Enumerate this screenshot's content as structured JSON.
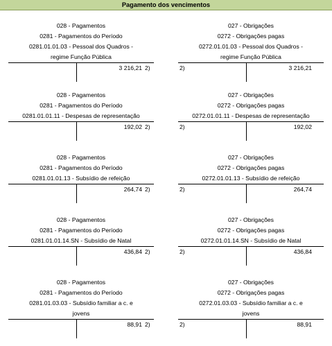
{
  "title": "Pagamento dos vencimentos",
  "blocks": [
    {
      "left": {
        "lines": [
          "028 - Pagamentos",
          "0281 - Pagamentos do Período",
          "0281.01.01.03 - Pessoal dos Quadros -",
          "regime Função Pública"
        ],
        "amount": "3 216,21",
        "ref": "2)"
      },
      "right": {
        "lines": [
          "027 - Obrigações",
          "0272 - Obrigações pagas",
          "0272.01.01.03 - Pessoal dos Quadros -",
          "regime Função Pública"
        ],
        "amount": "3 216,21",
        "ref": "2)"
      }
    },
    {
      "left": {
        "lines": [
          "028 - Pagamentos",
          "0281 - Pagamentos do Período",
          "0281.01.01.11 - Despesas de representação"
        ],
        "amount": "192,02",
        "ref": "2)"
      },
      "right": {
        "lines": [
          "027 - Obrigações",
          "0272 - Obrigações pagas",
          "0272.01.01.11 - Despesas de representação"
        ],
        "amount": "192,02",
        "ref": "2)"
      }
    },
    {
      "left": {
        "lines": [
          "028 - Pagamentos",
          "0281 - Pagamentos do Período",
          "0281.01.01.13 - Subsídio de refeição"
        ],
        "amount": "264,74",
        "ref": "2)"
      },
      "right": {
        "lines": [
          "027 - Obrigações",
          "0272 - Obrigações pagas",
          "0272.01.01.13 - Subsídio de refeição"
        ],
        "amount": "264,74",
        "ref": "2)"
      }
    },
    {
      "left": {
        "lines": [
          "028 - Pagamentos",
          "0281 - Pagamentos do Período",
          "0281.01.01.14.SN - Subsídio de Natal"
        ],
        "amount": "436,84",
        "ref": "2)"
      },
      "right": {
        "lines": [
          "027 - Obrigações",
          "0272 - Obrigações pagas",
          "0272.01.01.14.SN - Subsídio de Natal"
        ],
        "amount": "436,84",
        "ref": "2)"
      }
    },
    {
      "left": {
        "lines": [
          "028 - Pagamentos",
          "0281 - Pagamentos do Período",
          "0281.01.03.03 - Subsídio familiar a c. e",
          "jovens"
        ],
        "amount": "88,91",
        "ref": "2)"
      },
      "right": {
        "lines": [
          "027 - Obrigações",
          "0272 - Obrigações pagas",
          "0272.01.03.03 - Subsídio familiar a c. e",
          "jovens"
        ],
        "amount": "88,91",
        "ref": "2)"
      }
    }
  ]
}
